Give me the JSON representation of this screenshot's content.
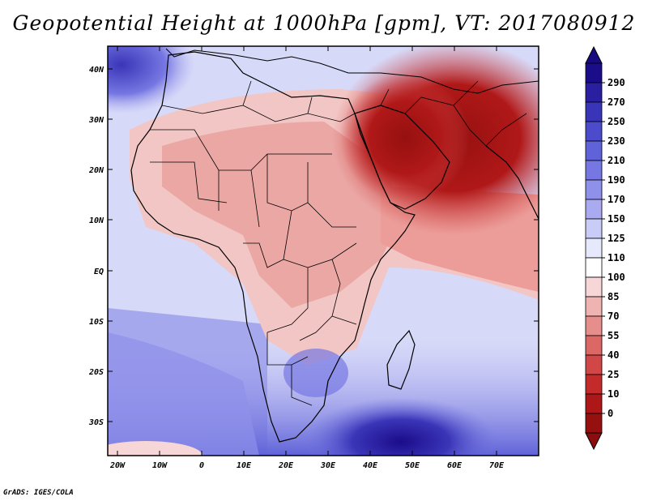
{
  "title": "Geopotential Height at 1000hPa [gpm], VT: 2017080912",
  "credit": "GrADS: IGES/COLA",
  "map": {
    "region": "Africa, Arabian Peninsula and western Indian Ocean",
    "lon_range": [
      -20,
      78
    ],
    "lat_range": [
      -37,
      46
    ],
    "lon_ticks": [
      "20W",
      "10W",
      "0",
      "10E",
      "20E",
      "30E",
      "40E",
      "50E",
      "60E",
      "70E"
    ],
    "lat_ticks": [
      "40N",
      "30N",
      "20N",
      "10N",
      "EQ",
      "10S",
      "20S",
      "30S"
    ]
  },
  "colorbar": {
    "labels": [
      "290",
      "270",
      "250",
      "230",
      "210",
      "190",
      "170",
      "150",
      "125",
      "110",
      "100",
      "85",
      "70",
      "55",
      "40",
      "25",
      "10",
      "0"
    ],
    "colors": [
      "#1b0c8a",
      "#2a1fa0",
      "#3a35b8",
      "#4b4bcb",
      "#5f62d8",
      "#7677e2",
      "#8f90ea",
      "#aaaaf0",
      "#c9ccf6",
      "#e6e8fb",
      "#ffffff",
      "#f6d6d6",
      "#efb3b1",
      "#e68e8b",
      "#dc6866",
      "#d14646",
      "#c42a2a",
      "#ad1717",
      "#961010"
    ],
    "top_color": "#180a80",
    "bottom_color": "#8c0d0d"
  }
}
